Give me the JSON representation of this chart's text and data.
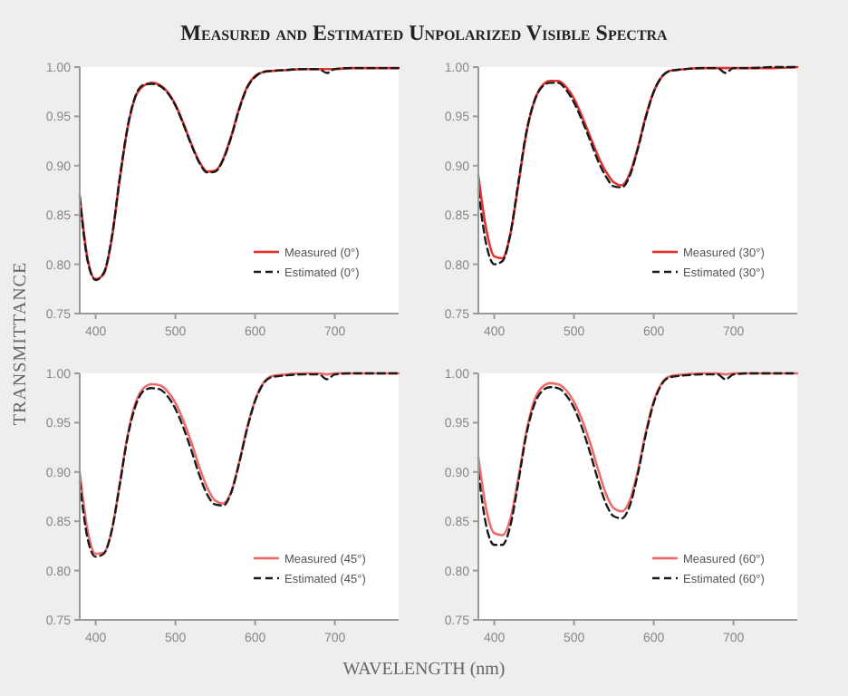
{
  "chart_data": [
    {
      "type": "line",
      "title": "Measured and Estimated Unpolarized Visible Spectra",
      "xlim": [
        380,
        780
      ],
      "ylim": [
        0.75,
        1.0
      ],
      "xticks": [
        400,
        500,
        600,
        700
      ],
      "yticks": [
        {
          "value": 0.75,
          "label": "0.75"
        },
        {
          "value": 0.8,
          "label": "0.80"
        },
        {
          "value": 0.85,
          "label": "0.85"
        },
        {
          "value": 0.9,
          "label": "0.90"
        },
        {
          "value": 0.95,
          "label": "0.95"
        },
        {
          "value": 1.0,
          "label": "1.00"
        }
      ],
      "legend": "bottom right",
      "x": [
        380,
        390,
        400,
        410,
        420,
        430,
        440,
        450,
        460,
        470,
        480,
        490,
        500,
        510,
        520,
        530,
        540,
        550,
        560,
        570,
        580,
        590,
        600,
        610,
        620,
        640,
        660,
        680,
        690,
        700,
        720,
        750,
        780
      ],
      "series": [
        {
          "name": "Measured (0°)",
          "color": "#e8312f",
          "line_style": "solid",
          "values": [
            0.87,
            0.805,
            0.785,
            0.79,
            0.825,
            0.885,
            0.938,
            0.97,
            0.981,
            0.984,
            0.982,
            0.975,
            0.962,
            0.943,
            0.922,
            0.904,
            0.894,
            0.895,
            0.907,
            0.93,
            0.958,
            0.98,
            0.991,
            0.995,
            0.996,
            0.997,
            0.998,
            0.998,
            0.998,
            0.998,
            0.999,
            0.999,
            0.999
          ]
        },
        {
          "name": "Estimated (0°)",
          "color": "#1a1a1a",
          "line_style": "dashed",
          "values": [
            0.868,
            0.803,
            0.784,
            0.791,
            0.826,
            0.886,
            0.939,
            0.971,
            0.982,
            0.983,
            0.981,
            0.974,
            0.961,
            0.942,
            0.921,
            0.903,
            0.893,
            0.894,
            0.906,
            0.929,
            0.957,
            0.979,
            0.99,
            0.995,
            0.996,
            0.997,
            0.998,
            0.998,
            0.994,
            0.998,
            0.999,
            0.999,
            0.999
          ]
        }
      ]
    },
    {
      "type": "line",
      "xlim": [
        380,
        780
      ],
      "ylim": [
        0.75,
        1.0
      ],
      "xticks": [
        400,
        500,
        600,
        700
      ],
      "yticks": [
        {
          "value": 0.75,
          "label": "0.75"
        },
        {
          "value": 0.8,
          "label": "0.80"
        },
        {
          "value": 0.85,
          "label": "0.85"
        },
        {
          "value": 0.9,
          "label": "0.90"
        },
        {
          "value": 0.95,
          "label": "0.95"
        },
        {
          "value": 1.0,
          "label": "1.00"
        }
      ],
      "legend": "bottom right",
      "x": [
        380,
        390,
        400,
        410,
        420,
        430,
        440,
        450,
        460,
        470,
        480,
        490,
        500,
        510,
        520,
        530,
        540,
        550,
        560,
        570,
        580,
        590,
        600,
        610,
        620,
        640,
        660,
        680,
        690,
        700,
        720,
        750,
        780
      ],
      "series": [
        {
          "name": "Measured (30°)",
          "color": "#e8312f",
          "line_style": "solid",
          "values": [
            0.89,
            0.835,
            0.808,
            0.806,
            0.83,
            0.88,
            0.932,
            0.965,
            0.981,
            0.986,
            0.986,
            0.98,
            0.968,
            0.95,
            0.93,
            0.91,
            0.894,
            0.883,
            0.88,
            0.892,
            0.918,
            0.95,
            0.975,
            0.99,
            0.996,
            0.998,
            0.999,
            0.999,
            0.999,
            0.999,
            0.999,
            0.999,
            1.0
          ]
        },
        {
          "name": "Estimated (30°)",
          "color": "#1a1a1a",
          "line_style": "dashed",
          "values": [
            0.875,
            0.82,
            0.8,
            0.803,
            0.83,
            0.882,
            0.933,
            0.965,
            0.98,
            0.984,
            0.984,
            0.977,
            0.964,
            0.946,
            0.926,
            0.905,
            0.889,
            0.879,
            0.878,
            0.89,
            0.917,
            0.949,
            0.975,
            0.99,
            0.996,
            0.998,
            0.999,
            0.999,
            0.994,
            0.999,
            0.999,
            1.0,
            1.0
          ]
        }
      ]
    },
    {
      "type": "line",
      "ylabel": "TRANSMITTANCE",
      "xlim": [
        380,
        780
      ],
      "ylim": [
        0.75,
        1.0
      ],
      "xticks": [
        400,
        500,
        600,
        700
      ],
      "yticks": [
        {
          "value": 0.75,
          "label": "0.75"
        },
        {
          "value": 0.8,
          "label": "0.80"
        },
        {
          "value": 0.85,
          "label": "0.85"
        },
        {
          "value": 0.9,
          "label": "0.90"
        },
        {
          "value": 0.95,
          "label": "0.95"
        },
        {
          "value": 1.0,
          "label": "1.00"
        }
      ],
      "legend": "bottom right",
      "x": [
        380,
        390,
        400,
        410,
        420,
        430,
        440,
        450,
        460,
        470,
        480,
        490,
        500,
        510,
        520,
        530,
        540,
        550,
        560,
        570,
        580,
        590,
        600,
        610,
        620,
        640,
        660,
        680,
        690,
        700,
        720,
        750,
        780
      ],
      "series": [
        {
          "name": "Measured (45°)",
          "color": "#f06a6a",
          "line_style": "solid",
          "values": [
            0.9,
            0.84,
            0.817,
            0.818,
            0.84,
            0.887,
            0.937,
            0.97,
            0.985,
            0.989,
            0.988,
            0.982,
            0.97,
            0.952,
            0.93,
            0.905,
            0.884,
            0.871,
            0.868,
            0.88,
            0.91,
            0.945,
            0.973,
            0.99,
            0.997,
            0.999,
            1.0,
            1.0,
            0.999,
            1.0,
            1.0,
            1.0,
            1.0
          ]
        },
        {
          "name": "Estimated (45°)",
          "color": "#1a1a1a",
          "line_style": "dashed",
          "values": [
            0.89,
            0.832,
            0.814,
            0.817,
            0.84,
            0.886,
            0.935,
            0.967,
            0.982,
            0.985,
            0.984,
            0.977,
            0.964,
            0.945,
            0.922,
            0.897,
            0.877,
            0.867,
            0.866,
            0.879,
            0.909,
            0.944,
            0.972,
            0.989,
            0.996,
            0.998,
            0.999,
            0.999,
            0.994,
            0.999,
            1.0,
            1.0,
            1.0
          ]
        }
      ]
    },
    {
      "type": "line",
      "xlabel": "WAVELENGTH (nm)",
      "xlim": [
        380,
        780
      ],
      "ylim": [
        0.75,
        1.0
      ],
      "xticks": [
        400,
        500,
        600,
        700
      ],
      "yticks": [
        {
          "value": 0.75,
          "label": "0.75"
        },
        {
          "value": 0.8,
          "label": "0.80"
        },
        {
          "value": 0.85,
          "label": "0.85"
        },
        {
          "value": 0.9,
          "label": "0.90"
        },
        {
          "value": 0.95,
          "label": "0.95"
        },
        {
          "value": 1.0,
          "label": "1.00"
        }
      ],
      "legend": "bottom right",
      "x": [
        380,
        390,
        400,
        410,
        420,
        430,
        440,
        450,
        460,
        470,
        480,
        490,
        500,
        510,
        520,
        530,
        540,
        550,
        560,
        570,
        580,
        590,
        600,
        610,
        620,
        640,
        660,
        680,
        690,
        700,
        720,
        750,
        780
      ],
      "series": [
        {
          "name": "Measured (60°)",
          "color": "#f06a6a",
          "line_style": "solid",
          "values": [
            0.915,
            0.862,
            0.838,
            0.836,
            0.852,
            0.893,
            0.94,
            0.972,
            0.986,
            0.99,
            0.989,
            0.983,
            0.971,
            0.953,
            0.93,
            0.903,
            0.878,
            0.863,
            0.86,
            0.871,
            0.901,
            0.94,
            0.972,
            0.99,
            0.997,
            0.999,
            1.0,
            1.0,
            0.999,
            1.0,
            1.0,
            1.0,
            1.0
          ]
        },
        {
          "name": "Estimated (60°)",
          "color": "#1a1a1a",
          "line_style": "dashed",
          "values": [
            0.9,
            0.845,
            0.826,
            0.826,
            0.845,
            0.889,
            0.937,
            0.968,
            0.982,
            0.986,
            0.985,
            0.978,
            0.965,
            0.945,
            0.92,
            0.892,
            0.868,
            0.855,
            0.853,
            0.866,
            0.898,
            0.938,
            0.97,
            0.989,
            0.996,
            0.998,
            0.999,
            0.999,
            0.994,
            0.999,
            1.0,
            1.0,
            1.0
          ]
        }
      ]
    }
  ]
}
